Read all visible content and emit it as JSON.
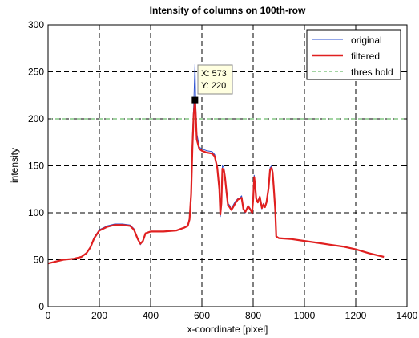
{
  "chart_data": {
    "type": "line",
    "title": "Intensity of columns on 100th-row",
    "xlabel": "x-coordinate [pixel]",
    "ylabel": "intensity",
    "xlim": [
      0,
      1400
    ],
    "ylim": [
      0,
      300
    ],
    "xticks": [
      0,
      200,
      400,
      600,
      800,
      1000,
      1200,
      1400
    ],
    "yticks": [
      0,
      50,
      100,
      150,
      200,
      250,
      300
    ],
    "xtick_labels": [
      "0",
      "200",
      "400",
      "600",
      "800",
      "1000",
      "1200",
      "1400"
    ],
    "ytick_labels": [
      "0",
      "50",
      "100",
      "150",
      "200",
      "250",
      "300"
    ],
    "grid": true,
    "legend_position": "top-right",
    "series": [
      {
        "name": "original",
        "color": "#2a4fd0",
        "points": [
          [
            0,
            46
          ],
          [
            30,
            48
          ],
          [
            60,
            50
          ],
          [
            100,
            51
          ],
          [
            130,
            53
          ],
          [
            150,
            57
          ],
          [
            165,
            64
          ],
          [
            180,
            74
          ],
          [
            200,
            82
          ],
          [
            230,
            86
          ],
          [
            260,
            88
          ],
          [
            290,
            88
          ],
          [
            320,
            87
          ],
          [
            335,
            83
          ],
          [
            350,
            72
          ],
          [
            360,
            66
          ],
          [
            370,
            70
          ],
          [
            380,
            78
          ],
          [
            400,
            80
          ],
          [
            450,
            80
          ],
          [
            500,
            81
          ],
          [
            530,
            84
          ],
          [
            545,
            87
          ],
          [
            552,
            95
          ],
          [
            558,
            125
          ],
          [
            563,
            180
          ],
          [
            568,
            215
          ],
          [
            573,
            258
          ],
          [
            576,
            215
          ],
          [
            580,
            185
          ],
          [
            590,
            170
          ],
          [
            600,
            168
          ],
          [
            620,
            166
          ],
          [
            640,
            165
          ],
          [
            650,
            162
          ],
          [
            655,
            155
          ],
          [
            660,
            150
          ],
          [
            668,
            128
          ],
          [
            672,
            96
          ],
          [
            676,
            108
          ],
          [
            680,
            150
          ],
          [
            686,
            148
          ],
          [
            690,
            140
          ],
          [
            696,
            125
          ],
          [
            702,
            110
          ],
          [
            708,
            108
          ],
          [
            715,
            104
          ],
          [
            722,
            108
          ],
          [
            730,
            112
          ],
          [
            740,
            115
          ],
          [
            748,
            116
          ],
          [
            755,
            118
          ],
          [
            762,
            103
          ],
          [
            770,
            100
          ],
          [
            780,
            108
          ],
          [
            790,
            104
          ],
          [
            796,
            98
          ],
          [
            800,
            116
          ],
          [
            804,
            140
          ],
          [
            808,
            130
          ],
          [
            812,
            116
          ],
          [
            818,
            112
          ],
          [
            826,
            118
          ],
          [
            834,
            104
          ],
          [
            840,
            110
          ],
          [
            846,
            106
          ],
          [
            852,
            112
          ],
          [
            860,
            128
          ],
          [
            866,
            148
          ],
          [
            872,
            150
          ],
          [
            876,
            145
          ],
          [
            880,
            130
          ],
          [
            886,
            105
          ],
          [
            890,
            75
          ],
          [
            894,
            74
          ],
          [
            900,
            73
          ],
          [
            950,
            72
          ],
          [
            1000,
            70
          ],
          [
            1050,
            68
          ],
          [
            1100,
            66
          ],
          [
            1150,
            64
          ],
          [
            1200,
            61
          ],
          [
            1250,
            57
          ],
          [
            1310,
            53
          ]
        ]
      },
      {
        "name": "filtered",
        "color": "#e02020",
        "points": [
          [
            0,
            46
          ],
          [
            30,
            48
          ],
          [
            60,
            50
          ],
          [
            100,
            51
          ],
          [
            130,
            53
          ],
          [
            150,
            57
          ],
          [
            165,
            63
          ],
          [
            180,
            73
          ],
          [
            200,
            81
          ],
          [
            230,
            85
          ],
          [
            260,
            87
          ],
          [
            290,
            87
          ],
          [
            320,
            86
          ],
          [
            335,
            82
          ],
          [
            350,
            72
          ],
          [
            360,
            67
          ],
          [
            370,
            70
          ],
          [
            380,
            78
          ],
          [
            400,
            80
          ],
          [
            450,
            80
          ],
          [
            500,
            81
          ],
          [
            530,
            84
          ],
          [
            545,
            86
          ],
          [
            552,
            93
          ],
          [
            558,
            120
          ],
          [
            563,
            170
          ],
          [
            568,
            205
          ],
          [
            573,
            220
          ],
          [
            576,
            205
          ],
          [
            580,
            178
          ],
          [
            590,
            168
          ],
          [
            600,
            166
          ],
          [
            620,
            164
          ],
          [
            640,
            163
          ],
          [
            650,
            160
          ],
          [
            655,
            154
          ],
          [
            660,
            148
          ],
          [
            668,
            125
          ],
          [
            672,
            98
          ],
          [
            676,
            110
          ],
          [
            680,
            147
          ],
          [
            686,
            145
          ],
          [
            690,
            138
          ],
          [
            696,
            122
          ],
          [
            702,
            108
          ],
          [
            708,
            106
          ],
          [
            715,
            103
          ],
          [
            722,
            106
          ],
          [
            730,
            110
          ],
          [
            740,
            114
          ],
          [
            748,
            115
          ],
          [
            755,
            116
          ],
          [
            762,
            104
          ],
          [
            770,
            101
          ],
          [
            780,
            107
          ],
          [
            790,
            103
          ],
          [
            796,
            100
          ],
          [
            800,
            114
          ],
          [
            804,
            138
          ],
          [
            808,
            128
          ],
          [
            812,
            115
          ],
          [
            818,
            111
          ],
          [
            826,
            117
          ],
          [
            834,
            105
          ],
          [
            840,
            109
          ],
          [
            846,
            106
          ],
          [
            852,
            111
          ],
          [
            860,
            126
          ],
          [
            866,
            146
          ],
          [
            872,
            148
          ],
          [
            876,
            143
          ],
          [
            880,
            128
          ],
          [
            886,
            104
          ],
          [
            890,
            75
          ],
          [
            894,
            74
          ],
          [
            900,
            73
          ],
          [
            950,
            72
          ],
          [
            1000,
            70
          ],
          [
            1050,
            68
          ],
          [
            1100,
            66
          ],
          [
            1150,
            64
          ],
          [
            1200,
            61
          ],
          [
            1250,
            57
          ],
          [
            1310,
            53
          ]
        ]
      },
      {
        "name": "thres hold",
        "color": "#44aa44",
        "style": "dashed",
        "y": 200
      }
    ],
    "datatip": {
      "x_value": 573,
      "y_value": 220,
      "x_text": "X: 573",
      "y_text": "Y: 220"
    }
  }
}
